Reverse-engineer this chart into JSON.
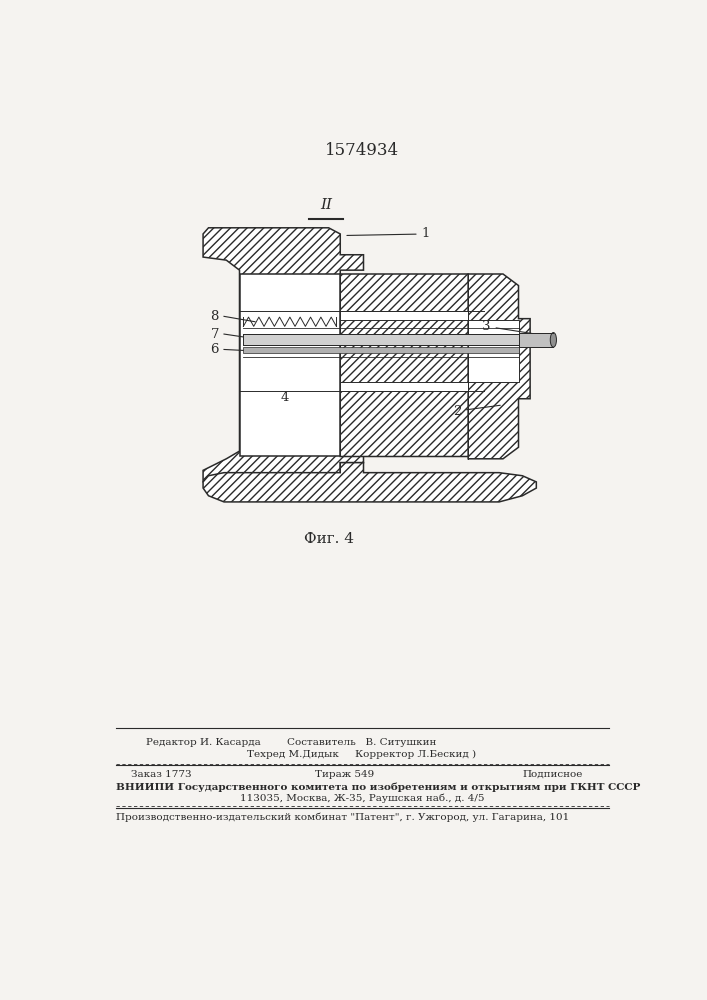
{
  "patent_number": "1574934",
  "fig_label": "Фиг. 4",
  "section_label": "II",
  "bg_color": "#f5f3f0",
  "line_color": "#2a2a2a",
  "footer": {
    "line1_left": "Редактор И. Касарда",
    "line1_center": "Составитель   В. Ситушкин",
    "line2_center": "Техред М.Дидык",
    "line2_right": "Корректор Л.Бескид )",
    "line3_left": "Заказ 1773",
    "line3_center": "Тираж 549",
    "line3_right": "Подписное",
    "line4": "ВНИИПИ Государственного комитета по изобретениям и открытиям при ГКНТ СССР",
    "line5": "113035, Москва, Ж-35, Раушская наб., д. 4/5",
    "line6": "Производственно-издательский комбинат \"Патент\", г. Ужгород, ул. Гагарина, 101"
  }
}
